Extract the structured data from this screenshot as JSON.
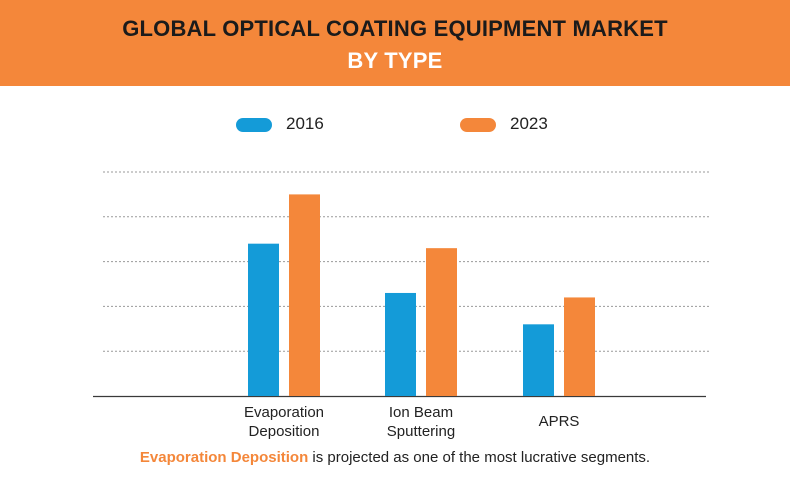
{
  "header": {
    "title_line1": "GLOBAL OPTICAL COATING EQUIPMENT MARKET",
    "title_line2": "BY TYPE"
  },
  "colors": {
    "banner": "#f4873a",
    "series_2016": "#149bd8",
    "series_2023": "#f4873a",
    "highlight": "#f4873a"
  },
  "footnote": {
    "highlight": "Evaporation Deposition",
    "rest": " is projected as one of the most lucrative segments."
  },
  "chart_data": {
    "type": "bar",
    "title": "GLOBAL OPTICAL COATING EQUIPMENT MARKET BY TYPE",
    "categories": [
      "Evaporation Deposition",
      "Ion Beam Sputtering",
      "APRS"
    ],
    "category_lines": [
      [
        "Evaporation",
        "Deposition"
      ],
      [
        "Ion Beam",
        "Sputtering"
      ],
      [
        "APRS"
      ]
    ],
    "series": [
      {
        "name": "2016",
        "color": "#149bd8",
        "values": [
          3.4,
          2.3,
          1.6
        ]
      },
      {
        "name": "2023",
        "color": "#f4873a",
        "values": [
          4.5,
          3.3,
          2.2
        ]
      }
    ],
    "ylim": [
      0,
      5
    ],
    "grid": true,
    "legend": "top",
    "y_tick_labels_shown": false
  }
}
